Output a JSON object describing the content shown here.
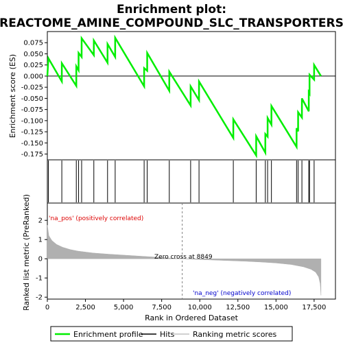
{
  "chart_data": {
    "type": "line",
    "title_line1": "Enrichment plot:",
    "title_line2": "REACTOME_AMINE_COMPOUND_SLC_TRANSPORTERS",
    "colors": {
      "enrichment": "#00ee00",
      "hits": "#000000",
      "metric_fill": "#b0b0b0",
      "pos_label": "#dd0000",
      "neg_label": "#0000cc",
      "zero_line": "#808080"
    },
    "es_panel": {
      "ylabel": "Enrichment score (ES)",
      "ylim": [
        -0.188,
        0.1
      ],
      "yticks": [
        0.075,
        0.05,
        0.025,
        0.0,
        -0.025,
        -0.05,
        -0.075,
        -0.1,
        -0.125,
        -0.15,
        -0.175
      ],
      "ytick_labels": [
        "0.075",
        "0.050",
        "0.025",
        "0.000",
        "-0.025",
        "-0.050",
        "-0.075",
        "-0.100",
        "-0.125",
        "-0.150",
        "-0.175"
      ],
      "xlim": [
        0,
        18900
      ],
      "hits": [
        70,
        950,
        1900,
        2050,
        2250,
        3050,
        3950,
        4450,
        6350,
        6550,
        8000,
        9400,
        9950,
        12200,
        13700,
        14300,
        14450,
        14700,
        16350,
        16450,
        16700,
        17150,
        17200,
        17500
      ],
      "points": [
        [
          0,
          0.0
        ],
        [
          70,
          0.04
        ],
        [
          950,
          -0.012
        ],
        [
          950,
          0.029
        ],
        [
          1900,
          -0.022
        ],
        [
          1900,
          0.022
        ],
        [
          2050,
          0.013
        ],
        [
          2050,
          0.052
        ],
        [
          2250,
          0.043
        ],
        [
          2250,
          0.085
        ],
        [
          3050,
          0.047
        ],
        [
          3050,
          0.08
        ],
        [
          3950,
          0.03
        ],
        [
          3950,
          0.072
        ],
        [
          4450,
          0.043
        ],
        [
          4450,
          0.086
        ],
        [
          6350,
          -0.023
        ],
        [
          6350,
          0.018
        ],
        [
          6550,
          0.012
        ],
        [
          6550,
          0.052
        ],
        [
          8000,
          -0.033
        ],
        [
          8000,
          0.01
        ],
        [
          9400,
          -0.066
        ],
        [
          9400,
          -0.023
        ],
        [
          9950,
          -0.054
        ],
        [
          9950,
          -0.012
        ],
        [
          12200,
          -0.139
        ],
        [
          12200,
          -0.097
        ],
        [
          13700,
          -0.178
        ],
        [
          13700,
          -0.135
        ],
        [
          14300,
          -0.172
        ],
        [
          14300,
          -0.13
        ],
        [
          14450,
          -0.136
        ],
        [
          14450,
          -0.094
        ],
        [
          14700,
          -0.109
        ],
        [
          14700,
          -0.067
        ],
        [
          16350,
          -0.159
        ],
        [
          16350,
          -0.117
        ],
        [
          16450,
          -0.124
        ],
        [
          16450,
          -0.081
        ],
        [
          16700,
          -0.093
        ],
        [
          16700,
          -0.05
        ],
        [
          17150,
          -0.079
        ],
        [
          17150,
          -0.036
        ],
        [
          17200,
          -0.039
        ],
        [
          17200,
          0.003
        ],
        [
          17500,
          -0.008
        ],
        [
          17500,
          0.025
        ],
        [
          17950,
          0.0
        ]
      ]
    },
    "metric_panel": {
      "ylabel": "Ranked list metric (PreRanked)",
      "xlabel": "Rank in Ordered Dataset",
      "ylim": [
        -2.1,
        2.9
      ],
      "yticks": [
        2,
        1,
        0,
        -1,
        -2
      ],
      "ytick_labels": [
        "2",
        "1",
        "0",
        "-1",
        "-2"
      ],
      "xticks": [
        0,
        2500,
        5000,
        7500,
        10000,
        12500,
        15000,
        17500
      ],
      "xtick_labels": [
        "0",
        "2,500",
        "5,000",
        "7,500",
        "10,000",
        "12,500",
        "15,000",
        "17,500"
      ],
      "xlim": [
        0,
        18900
      ],
      "zero_cross": 8849,
      "zero_cross_label": "Zero cross at 8849",
      "pos_label": "'na_pos' (positively correlated)",
      "neg_label": "'na_neg' (negatively correlated)",
      "curve": [
        [
          0,
          1.75
        ],
        [
          100,
          1.2
        ],
        [
          300,
          0.95
        ],
        [
          600,
          0.75
        ],
        [
          1000,
          0.6
        ],
        [
          1500,
          0.48
        ],
        [
          2000,
          0.4
        ],
        [
          3000,
          0.3
        ],
        [
          4000,
          0.24
        ],
        [
          5000,
          0.19
        ],
        [
          6000,
          0.14
        ],
        [
          7000,
          0.09
        ],
        [
          8000,
          0.04
        ],
        [
          8849,
          0.0
        ],
        [
          10000,
          -0.04
        ],
        [
          11000,
          -0.07
        ],
        [
          12000,
          -0.1
        ],
        [
          13000,
          -0.13
        ],
        [
          14000,
          -0.17
        ],
        [
          15000,
          -0.22
        ],
        [
          16000,
          -0.3
        ],
        [
          16800,
          -0.42
        ],
        [
          17300,
          -0.55
        ],
        [
          17600,
          -0.7
        ],
        [
          17800,
          -0.95
        ],
        [
          17900,
          -1.3
        ],
        [
          17950,
          -1.9
        ]
      ],
      "bar_segments": [
        {
          "start": 0,
          "end": 420,
          "color": "#e80000"
        },
        {
          "start": 420,
          "end": 1300,
          "color": "#f53030"
        },
        {
          "start": 1300,
          "end": 2900,
          "color": "#f85050"
        },
        {
          "start": 2900,
          "end": 4200,
          "color": "#f87878"
        },
        {
          "start": 4200,
          "end": 6200,
          "color": "#fa9ea0"
        },
        {
          "start": 6200,
          "end": 7600,
          "color": "#fbc0dc"
        },
        {
          "start": 7600,
          "end": 8849,
          "color": "#f5d2ec"
        },
        {
          "start": 8849,
          "end": 11100,
          "color": "#e2e2f6"
        },
        {
          "start": 11100,
          "end": 13200,
          "color": "#cacaf2"
        },
        {
          "start": 13200,
          "end": 14500,
          "color": "#a6a6ec"
        },
        {
          "start": 14500,
          "end": 16000,
          "color": "#7c7ce6"
        },
        {
          "start": 16000,
          "end": 17100,
          "color": "#5858dc"
        },
        {
          "start": 17100,
          "end": 17950,
          "color": "#2a2acc"
        }
      ]
    },
    "legend": {
      "items": [
        {
          "label": "Enrichment profile",
          "kind": "line",
          "color": "#00ee00"
        },
        {
          "label": "Hits",
          "kind": "line",
          "color": "#000000"
        },
        {
          "label": "Ranking metric scores",
          "kind": "line",
          "color": "#c0c0c0"
        }
      ]
    }
  }
}
